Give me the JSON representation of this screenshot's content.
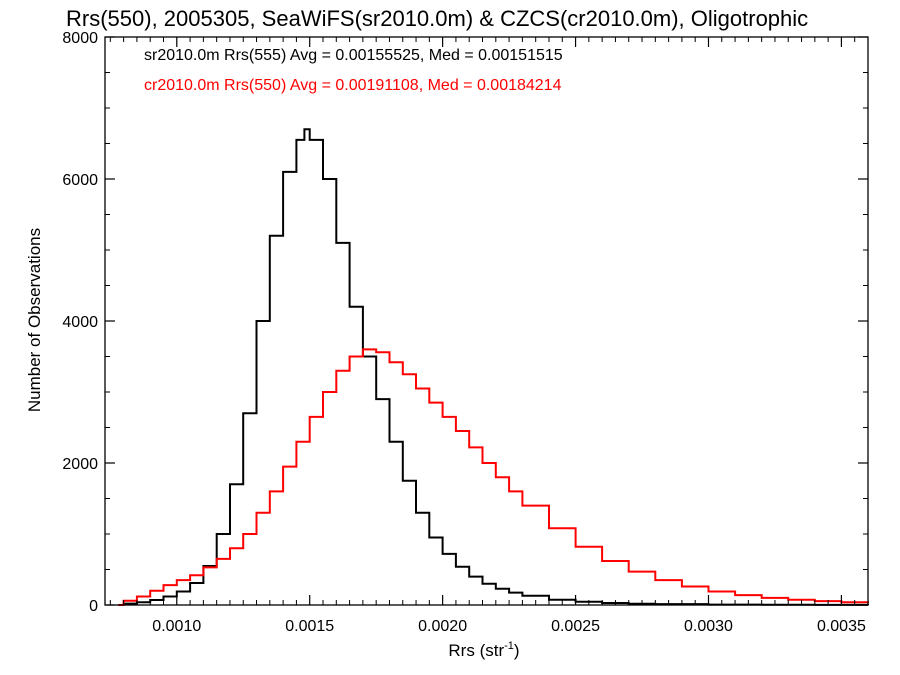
{
  "chart_data": {
    "type": "line",
    "title": "Rrs(550), 2005305, SeaWiFS(sr2010.0m) & CZCS(cr2010.0m), Oligotrophic",
    "xlabel_main": "Rrs (str",
    "xlabel_sup": "-1",
    "xlabel_close": ")",
    "ylabel": "Number of Observations",
    "xlim": [
      0.00073,
      0.0036
    ],
    "ylim": [
      0,
      8000
    ],
    "x_ticks": [
      {
        "value": 0.001,
        "label": "0.0010"
      },
      {
        "value": 0.0015,
        "label": "0.0015"
      },
      {
        "value": 0.002,
        "label": "0.0020"
      },
      {
        "value": 0.0025,
        "label": "0.0025"
      },
      {
        "value": 0.003,
        "label": "0.0030"
      },
      {
        "value": 0.0035,
        "label": "0.0035"
      }
    ],
    "y_ticks": [
      {
        "value": 0,
        "label": "0"
      },
      {
        "value": 2000,
        "label": "2000"
      },
      {
        "value": 4000,
        "label": "4000"
      },
      {
        "value": 6000,
        "label": "6000"
      },
      {
        "value": 8000,
        "label": "8000"
      }
    ],
    "grid": false,
    "legend_position": "top-left",
    "series": [
      {
        "legend": "sr2010.0m Rrs(555) Avg = 0.00155525, Med = 0.00151515",
        "color": "#000000",
        "step": true,
        "x": [
          0.00078,
          0.0008,
          0.00085,
          0.0009,
          0.00095,
          0.001,
          0.00105,
          0.0011,
          0.00115,
          0.0012,
          0.00125,
          0.0013,
          0.00135,
          0.0014,
          0.00145,
          0.00148,
          0.0015,
          0.00155,
          0.0016,
          0.00165,
          0.0017,
          0.00175,
          0.0018,
          0.00185,
          0.0019,
          0.00195,
          0.002,
          0.00205,
          0.0021,
          0.00215,
          0.0022,
          0.00225,
          0.0023,
          0.0024,
          0.0025,
          0.0026,
          0.0027,
          0.0028,
          0.003,
          0.0032,
          0.0034,
          0.0036
        ],
        "y": [
          0,
          20,
          40,
          70,
          120,
          190,
          310,
          550,
          1000,
          1700,
          2700,
          4000,
          5200,
          6100,
          6550,
          6700,
          6550,
          6000,
          5100,
          4200,
          3500,
          2900,
          2300,
          1750,
          1300,
          950,
          720,
          540,
          400,
          300,
          230,
          175,
          130,
          75,
          45,
          28,
          18,
          12,
          6,
          3,
          1,
          0
        ]
      },
      {
        "legend": "cr2010.0m Rrs(550) Avg = 0.00191108, Med = 0.00184214",
        "color": "#ff0000",
        "step": true,
        "x": [
          0.00078,
          0.0008,
          0.00085,
          0.0009,
          0.00095,
          0.001,
          0.00105,
          0.0011,
          0.00115,
          0.0012,
          0.00125,
          0.0013,
          0.00135,
          0.0014,
          0.00145,
          0.0015,
          0.00155,
          0.0016,
          0.00165,
          0.0017,
          0.00175,
          0.0018,
          0.00185,
          0.0019,
          0.00195,
          0.002,
          0.00205,
          0.0021,
          0.00215,
          0.0022,
          0.00225,
          0.0023,
          0.0024,
          0.0025,
          0.0026,
          0.0027,
          0.0028,
          0.0029,
          0.003,
          0.0031,
          0.0032,
          0.0033,
          0.0034,
          0.0035,
          0.0036
        ],
        "y": [
          0,
          60,
          120,
          200,
          280,
          350,
          420,
          530,
          650,
          800,
          1000,
          1300,
          1600,
          1950,
          2300,
          2650,
          3000,
          3300,
          3500,
          3600,
          3560,
          3420,
          3250,
          3050,
          2850,
          2650,
          2450,
          2220,
          2000,
          1800,
          1600,
          1400,
          1080,
          820,
          620,
          470,
          350,
          260,
          190,
          140,
          100,
          75,
          55,
          40,
          30
        ]
      }
    ]
  }
}
